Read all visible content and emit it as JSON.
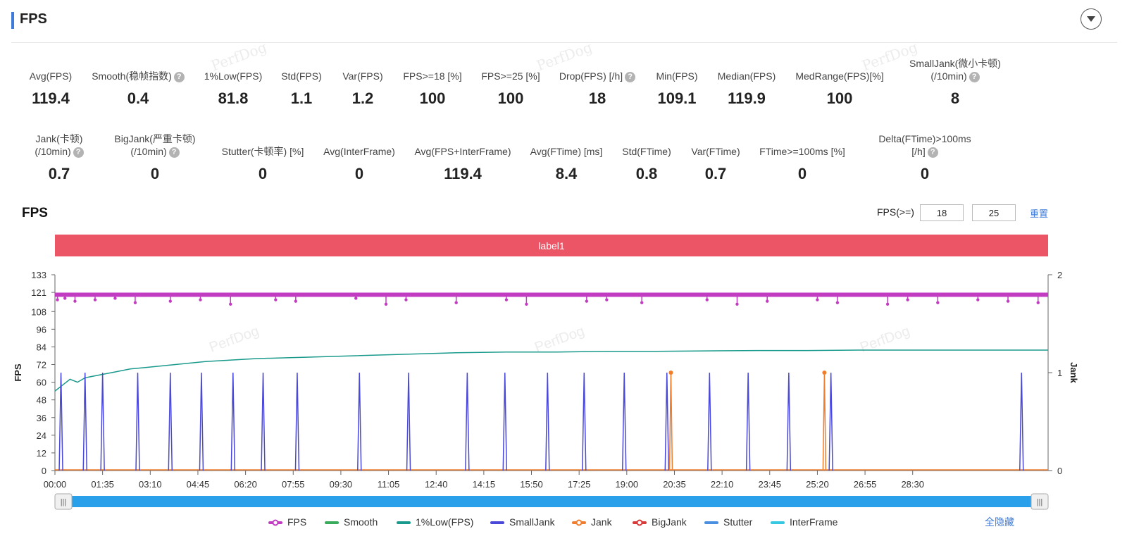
{
  "header": {
    "title": "FPS"
  },
  "metrics_row1": [
    {
      "label": "Avg(FPS)",
      "value": "119.4",
      "help": false
    },
    {
      "label": "Smooth(稳帧指数)",
      "value": "0.4",
      "help": true
    },
    {
      "label": "1%Low(FPS)",
      "value": "81.8",
      "help": false
    },
    {
      "label": "Std(FPS)",
      "value": "1.1",
      "help": false
    },
    {
      "label": "Var(FPS)",
      "value": "1.2",
      "help": false
    },
    {
      "label": "FPS>=18 [%]",
      "value": "100",
      "help": false
    },
    {
      "label": "FPS>=25 [%]",
      "value": "100",
      "help": false
    },
    {
      "label": "Drop(FPS) [/h]",
      "value": "18",
      "help": true
    },
    {
      "label": "Min(FPS)",
      "value": "109.1",
      "help": false
    },
    {
      "label": "Median(FPS)",
      "value": "119.9",
      "help": false
    },
    {
      "label": "MedRange(FPS)[%]",
      "value": "100",
      "help": false
    },
    {
      "label": "SmallJank(微小卡顿)",
      "label2": "(/10min)",
      "value": "8",
      "help": true
    }
  ],
  "metrics_row2": [
    {
      "label": "Jank(卡顿)",
      "label2": "(/10min)",
      "value": "0.7",
      "help": true
    },
    {
      "label": "BigJank(严重卡顿)",
      "label2": "(/10min)",
      "value": "0",
      "help": true
    },
    {
      "label": "Stutter(卡顿率) [%]",
      "value": "0",
      "help": false
    },
    {
      "label": "Avg(InterFrame)",
      "value": "0",
      "help": false
    },
    {
      "label": "Avg(FPS+InterFrame)",
      "value": "119.4",
      "help": false
    },
    {
      "label": "Avg(FTime) [ms]",
      "value": "8.4",
      "help": false
    },
    {
      "label": "Std(FTime)",
      "value": "0.8",
      "help": false
    },
    {
      "label": "Var(FTime)",
      "value": "0.7",
      "help": false
    },
    {
      "label": "FTime>=100ms [%]",
      "value": "0",
      "help": false
    },
    {
      "label": "Delta(FTime)>100ms [/h]",
      "value": "0",
      "help": true
    }
  ],
  "help_glyph": "?",
  "watermark": "PerfDog",
  "chart_section": {
    "title": "FPS",
    "threshold_label": "FPS(>=)",
    "threshold1": "18",
    "threshold2": "25",
    "reset_label": "重置",
    "hide_all_label": "全隐藏"
  },
  "chart_data": {
    "type": "line",
    "title": "FPS",
    "label_band": "label1",
    "ylabel": "FPS",
    "y2label": "Jank",
    "ylim": [
      0,
      133
    ],
    "y_ticks": [
      "0",
      "12",
      "24",
      "36",
      "48",
      "60",
      "72",
      "84",
      "96",
      "108",
      "121",
      "133"
    ],
    "y2lim": [
      0,
      2
    ],
    "y2_ticks": [
      "0",
      "1",
      "2"
    ],
    "x_range_sec": [
      0,
      1980
    ],
    "x_ticks": [
      "00:00",
      "01:35",
      "03:10",
      "04:45",
      "06:20",
      "07:55",
      "09:30",
      "11:05",
      "12:40",
      "14:15",
      "15:50",
      "17:25",
      "19:00",
      "20:35",
      "22:10",
      "23:45",
      "25:20",
      "26:55",
      "28:30"
    ],
    "fps_typical": 119.4,
    "fps_dips": [
      [
        5,
        116
      ],
      [
        20,
        117
      ],
      [
        40,
        115
      ],
      [
        80,
        116
      ],
      [
        120,
        117
      ],
      [
        160,
        114
      ],
      [
        230,
        115
      ],
      [
        290,
        116
      ],
      [
        350,
        113
      ],
      [
        440,
        116
      ],
      [
        480,
        115
      ],
      [
        600,
        117
      ],
      [
        660,
        113
      ],
      [
        700,
        116
      ],
      [
        800,
        114
      ],
      [
        900,
        116
      ],
      [
        940,
        113
      ],
      [
        1060,
        115
      ],
      [
        1100,
        116
      ],
      [
        1170,
        114
      ],
      [
        1300,
        116
      ],
      [
        1360,
        113
      ],
      [
        1420,
        115
      ],
      [
        1520,
        116
      ],
      [
        1560,
        114
      ],
      [
        1660,
        113
      ],
      [
        1700,
        116
      ],
      [
        1760,
        114
      ],
      [
        1840,
        116
      ],
      [
        1900,
        115
      ],
      [
        1960,
        114
      ]
    ],
    "low1pct_points": [
      [
        0,
        54
      ],
      [
        15,
        58
      ],
      [
        30,
        62
      ],
      [
        45,
        60
      ],
      [
        60,
        63
      ],
      [
        90,
        65
      ],
      [
        120,
        67
      ],
      [
        150,
        69
      ],
      [
        180,
        70
      ],
      [
        240,
        72
      ],
      [
        300,
        74
      ],
      [
        400,
        76
      ],
      [
        500,
        77
      ],
      [
        600,
        78
      ],
      [
        700,
        79
      ],
      [
        800,
        80
      ],
      [
        900,
        80.5
      ],
      [
        1000,
        80.5
      ],
      [
        1100,
        81
      ],
      [
        1200,
        81
      ],
      [
        1300,
        81.3
      ],
      [
        1400,
        81.5
      ],
      [
        1500,
        81.5
      ],
      [
        1600,
        81.8
      ],
      [
        1700,
        81.8
      ],
      [
        1800,
        81.8
      ],
      [
        1900,
        81.8
      ],
      [
        1980,
        81.8
      ]
    ],
    "smalljank_times": [
      12,
      60,
      95,
      165,
      230,
      292,
      355,
      415,
      483,
      607,
      705,
      822,
      897,
      982,
      1055,
      1135,
      1220,
      1305,
      1382,
      1463,
      1547,
      1927
    ],
    "smalljank_value": 1,
    "jank_times": [
      1228,
      1534
    ],
    "jank_value": 1,
    "legend": [
      {
        "name": "FPS",
        "color": "#c23cc2",
        "marker": "dot"
      },
      {
        "name": "Smooth",
        "color": "#3aab5a",
        "marker": "line"
      },
      {
        "name": "1%Low(FPS)",
        "color": "#1a9a8c",
        "marker": "line"
      },
      {
        "name": "SmallJank",
        "color": "#4a48d8",
        "marker": "line"
      },
      {
        "name": "Jank",
        "color": "#ef7d2e",
        "marker": "dot"
      },
      {
        "name": "BigJank",
        "color": "#d83a3a",
        "marker": "dot"
      },
      {
        "name": "Stutter",
        "color": "#4a8fe0",
        "marker": "line"
      },
      {
        "name": "InterFrame",
        "color": "#35c8e0",
        "marker": "line"
      }
    ]
  }
}
